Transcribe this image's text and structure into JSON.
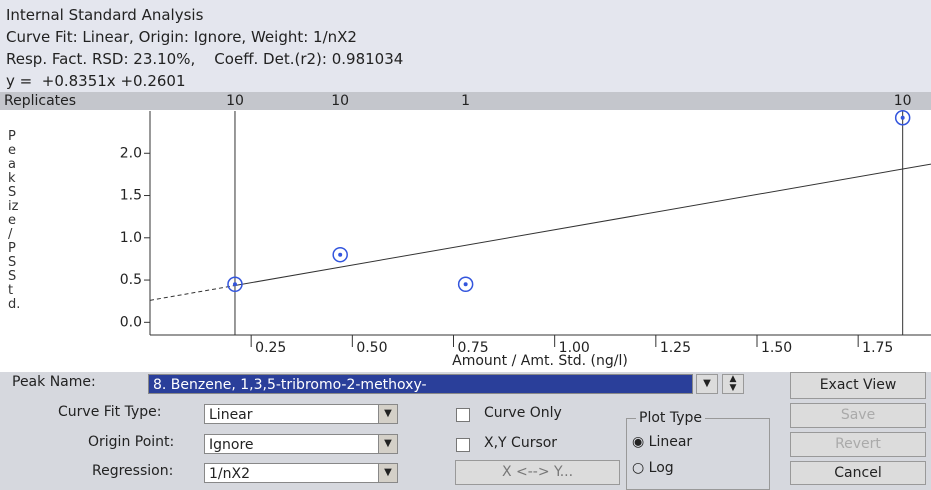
{
  "header": {
    "title": "Internal Standard Analysis",
    "lines": [
      "Curve Fit: Linear, Origin: Ignore, Weight: 1/nX2",
      "Resp. Fact. RSD: 23.10%,    Coeff. Det.(r2): 0.981034",
      "y =  +0.8351x +0.2601"
    ]
  },
  "chart_data": {
    "type": "scatter",
    "replicates_label": "Replicates",
    "replicates": [
      10,
      10,
      1,
      10
    ],
    "x": [
      0.21,
      0.47,
      0.78,
      1.86
    ],
    "values": [
      0.45,
      0.8,
      0.45,
      2.42
    ],
    "color": "#3355dd",
    "fit": {
      "slope": 0.8351,
      "intercept": 0.2601
    },
    "ylabel": "Peak Size / PS Std.",
    "xlabel": "Amount / Amt. Std. (ng/l)",
    "xlim": [
      0,
      1.93
    ],
    "ylim": [
      -0.15,
      2.5
    ],
    "xticks": [
      0.25,
      {
        "value": 0.5,
        "label": "0.50"
      },
      0.75,
      {
        "value": 1,
        "label": "1.00"
      },
      1.25,
      {
        "value": 1.5,
        "label": "1.50"
      },
      1.75
    ],
    "yticks": [
      {
        "value": 0,
        "label": "0.0"
      },
      0.5,
      {
        "value": 1,
        "label": "1.0"
      },
      1.5,
      {
        "value": 2,
        "label": "2.0"
      }
    ]
  },
  "controls": {
    "peak_name_label": "Peak Name:",
    "peak_name": "8. Benzene, 1,3,5-tribromo-2-methoxy-",
    "curve_fit_type_label": "Curve Fit Type:",
    "curve_fit_type": "Linear",
    "origin_point_label": "Origin Point:",
    "origin_point": "Ignore",
    "regression_label": "Regression:",
    "regression": "1/nX2",
    "curve_only": "Curve Only",
    "xy_cursor": "X,Y Cursor",
    "swap_button": "X <--> Y...",
    "plot_type_label": "Plot Type",
    "plot_type_options": [
      "Linear",
      "Log"
    ],
    "buttons": [
      "Exact View",
      "Save",
      "Revert",
      "Cancel"
    ]
  }
}
